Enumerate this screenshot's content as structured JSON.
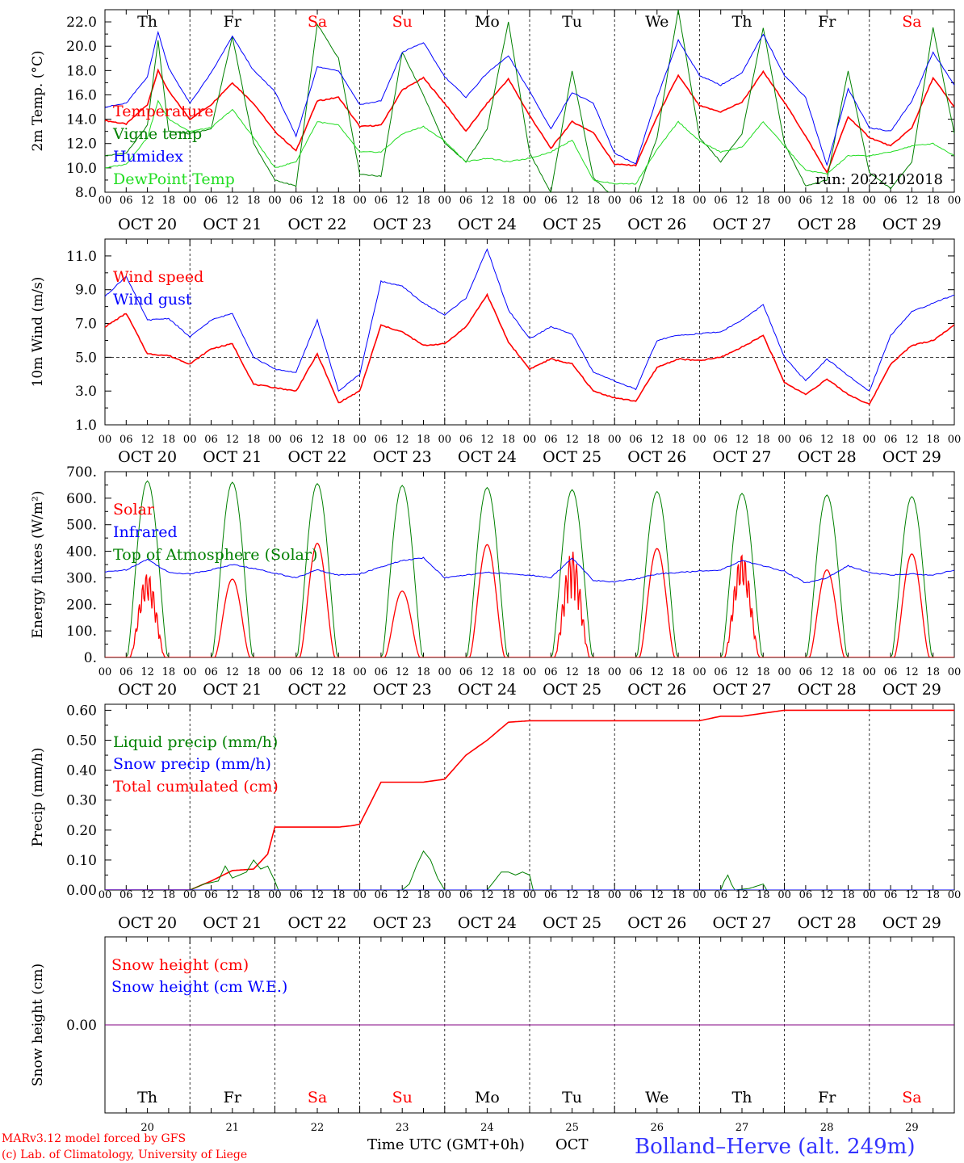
{
  "colors": {
    "red": "#ff0000",
    "green": "#008000",
    "blue": "#0000ff",
    "lightgreen": "#22dd22",
    "purple": "#800080",
    "black": "#000000",
    "title_blue": "#3333ff"
  },
  "days": {
    "names": [
      "Th",
      "Fr",
      "Sa",
      "Su",
      "Mo",
      "Tu",
      "We",
      "Th",
      "Fr",
      "Sa"
    ],
    "weekend": [
      false,
      false,
      true,
      true,
      false,
      false,
      false,
      false,
      false,
      true
    ],
    "dates": [
      "OCT 20",
      "OCT 21",
      "OCT 22",
      "OCT 23",
      "OCT 24",
      "OCT 25",
      "OCT 26",
      "OCT 27",
      "OCT 28",
      "OCT 29"
    ],
    "numbers": [
      "20",
      "21",
      "22",
      "23",
      "24",
      "25",
      "26",
      "27",
      "28",
      "29"
    ],
    "hour_ticks": [
      "00",
      "06",
      "12",
      "18"
    ],
    "end_tick": "00"
  },
  "footer": {
    "credit1": "MARv3.12 model forced by GFS",
    "credit2": "(c) Lab. of Climatology, University of Liege",
    "xlabel": "Time UTC (GMT+0h)",
    "month": "OCT",
    "station": "Bolland–Herve (alt. 249m)"
  },
  "chart_data": [
    {
      "type": "line",
      "ylabel": "2m Temp. (°C)",
      "ylim": [
        8.0,
        23.0
      ],
      "yticks": [
        "8.0",
        "10.0",
        "12.0",
        "14.0",
        "16.0",
        "18.0",
        "20.0",
        "22.0"
      ],
      "run_label": "run: 2022102018",
      "x_unit": "hours since Oct 20 00 UTC",
      "legend": [
        "Temperature",
        "Vigne temp",
        "Humidex",
        "DewPoint Temp"
      ],
      "series": [
        {
          "name": "Temperature",
          "color": "red",
          "x": [
            0,
            6,
            12,
            15,
            18,
            24,
            30,
            36,
            42,
            48,
            54,
            60,
            66,
            72,
            78,
            84,
            90,
            96,
            102,
            108,
            114,
            120,
            126,
            132,
            138,
            144,
            150,
            156,
            162,
            168,
            174,
            180,
            186,
            192,
            198,
            204,
            210,
            216,
            222,
            228,
            234,
            240
          ],
          "y": [
            13.9,
            13.6,
            15.2,
            18.0,
            16.3,
            14.0,
            15.2,
            17.0,
            15.3,
            13.0,
            11.4,
            15.5,
            15.8,
            13.4,
            13.5,
            16.4,
            17.4,
            15.3,
            13.0,
            15.3,
            17.3,
            14.3,
            11.6,
            13.8,
            12.9,
            10.3,
            10.2,
            14.2,
            17.6,
            15.1,
            14.6,
            15.4,
            17.9,
            15.4,
            12.6,
            9.6,
            14.2,
            12.5,
            11.8,
            13.3,
            17.4,
            15.0
          ]
        },
        {
          "name": "Vigne temp",
          "color": "green",
          "x": [
            0,
            6,
            12,
            15,
            18,
            24,
            30,
            36,
            42,
            48,
            54,
            60,
            66,
            72,
            78,
            84,
            90,
            96,
            102,
            108,
            114,
            120,
            126,
            132,
            138,
            144,
            150,
            156,
            162,
            168,
            174,
            180,
            186,
            192,
            198,
            204,
            210,
            216,
            222,
            228,
            234,
            240
          ],
          "y": [
            11.0,
            11.2,
            13.5,
            20.5,
            13.0,
            12.8,
            13.2,
            20.8,
            12.0,
            9.0,
            8.5,
            21.8,
            19.0,
            9.5,
            9.3,
            19.5,
            16.0,
            12.0,
            10.5,
            13.2,
            22.0,
            11.2,
            8.0,
            18.0,
            9.2,
            7.5,
            7.5,
            12.5,
            23.0,
            12.5,
            10.5,
            12.8,
            21.5,
            12.0,
            8.5,
            9.0,
            18.0,
            9.6,
            8.3,
            10.5,
            21.5,
            12.8
          ]
        },
        {
          "name": "Humidex",
          "color": "blue",
          "x": [
            0,
            6,
            12,
            15,
            18,
            24,
            30,
            36,
            42,
            48,
            54,
            60,
            66,
            72,
            78,
            84,
            90,
            96,
            102,
            108,
            114,
            120,
            126,
            132,
            138,
            144,
            150,
            156,
            162,
            168,
            174,
            180,
            186,
            192,
            198,
            204,
            210,
            216,
            222,
            228,
            234,
            240
          ],
          "y": [
            15.0,
            15.3,
            17.5,
            21.2,
            18.2,
            15.3,
            17.8,
            20.8,
            18.0,
            16.3,
            12.6,
            18.3,
            18.0,
            15.2,
            15.5,
            19.5,
            20.3,
            17.5,
            15.8,
            17.8,
            19.2,
            16.3,
            13.2,
            16.2,
            15.3,
            11.2,
            10.3,
            15.8,
            20.5,
            17.6,
            16.8,
            17.8,
            21.0,
            17.6,
            15.8,
            10.2,
            16.5,
            13.3,
            13.0,
            15.5,
            19.5,
            16.8
          ]
        },
        {
          "name": "DewPoint Temp",
          "color": "lightgreen",
          "x": [
            0,
            6,
            12,
            15,
            18,
            24,
            30,
            36,
            42,
            48,
            54,
            60,
            66,
            72,
            78,
            84,
            90,
            96,
            102,
            108,
            114,
            120,
            126,
            132,
            138,
            144,
            150,
            156,
            162,
            168,
            174,
            180,
            186,
            192,
            198,
            204,
            210,
            216,
            222,
            228,
            234,
            240
          ],
          "y": [
            10.0,
            10.3,
            12.5,
            15.5,
            14.0,
            13.0,
            13.3,
            14.8,
            12.5,
            10.0,
            10.5,
            13.8,
            13.5,
            11.3,
            11.3,
            12.8,
            13.4,
            12.2,
            10.5,
            10.8,
            10.5,
            10.8,
            11.3,
            12.3,
            9.0,
            8.7,
            8.7,
            11.5,
            13.8,
            12.2,
            11.3,
            11.7,
            13.8,
            11.8,
            9.8,
            9.5,
            11.0,
            11.0,
            11.3,
            11.8,
            12.0,
            11.0
          ]
        }
      ]
    },
    {
      "type": "line",
      "ylabel": "10m Wind (m/s)",
      "ylim": [
        1.0,
        12.0
      ],
      "yticks": [
        "1.0",
        "3.0",
        "5.0",
        "7.0",
        "9.0",
        "11.0"
      ],
      "reference_line": 5.0,
      "x_unit": "hours since Oct 20 00 UTC",
      "legend": [
        "Wind speed",
        "Wind gust"
      ],
      "series": [
        {
          "name": "Wind speed",
          "color": "red",
          "x": [
            0,
            6,
            12,
            18,
            24,
            30,
            36,
            42,
            48,
            54,
            60,
            66,
            72,
            78,
            84,
            90,
            96,
            102,
            108,
            114,
            120,
            126,
            132,
            138,
            144,
            150,
            156,
            162,
            168,
            174,
            180,
            186,
            192,
            198,
            204,
            210,
            216,
            222,
            228,
            234,
            240
          ],
          "y": [
            6.8,
            7.6,
            5.2,
            5.1,
            4.6,
            5.5,
            5.8,
            3.4,
            3.2,
            3.0,
            5.2,
            2.3,
            3.0,
            6.9,
            6.5,
            5.7,
            5.8,
            6.8,
            8.7,
            5.9,
            4.3,
            4.9,
            4.6,
            3.0,
            2.6,
            2.4,
            4.4,
            4.9,
            4.8,
            5.0,
            5.6,
            6.3,
            3.5,
            2.8,
            3.7,
            2.8,
            2.2,
            4.6,
            5.7,
            6.0,
            6.9
          ]
        },
        {
          "name": "Wind gust",
          "color": "blue",
          "x": [
            0,
            6,
            12,
            18,
            24,
            30,
            36,
            42,
            48,
            54,
            60,
            66,
            72,
            78,
            84,
            90,
            96,
            102,
            108,
            114,
            120,
            126,
            132,
            138,
            144,
            150,
            156,
            162,
            168,
            174,
            180,
            186,
            192,
            198,
            204,
            210,
            216,
            222,
            228,
            234,
            240
          ],
          "y": [
            8.6,
            9.8,
            7.2,
            7.3,
            6.2,
            7.2,
            7.6,
            5.0,
            4.3,
            4.1,
            7.2,
            3.0,
            4.0,
            9.5,
            9.2,
            8.2,
            7.5,
            8.5,
            11.4,
            7.8,
            6.1,
            6.8,
            6.4,
            4.1,
            3.6,
            3.1,
            6.0,
            6.3,
            6.4,
            6.5,
            7.2,
            8.1,
            5.0,
            3.6,
            4.9,
            3.9,
            3.0,
            6.3,
            7.7,
            8.2,
            8.7
          ]
        }
      ]
    },
    {
      "type": "line",
      "ylabel": "Energy fluxes (W/m²)",
      "ylim": [
        0,
        700
      ],
      "yticks": [
        "0.",
        "100.",
        "200.",
        "300.",
        "400.",
        "500.",
        "600.",
        "700."
      ],
      "x_unit": "hours since Oct 20 00 UTC",
      "legend": [
        "Solar",
        "Infrared",
        "Top of Atmosphere (Solar)"
      ],
      "toa_daily_peak": [
        665,
        660,
        655,
        648,
        640,
        632,
        625,
        618,
        612,
        606
      ],
      "solar_daily_peak": [
        320,
        295,
        430,
        250,
        425,
        400,
        410,
        395,
        330,
        390
      ],
      "series": [
        {
          "name": "Infrared",
          "color": "blue",
          "x": [
            0,
            6,
            12,
            18,
            24,
            30,
            36,
            42,
            48,
            54,
            60,
            66,
            72,
            78,
            84,
            90,
            96,
            102,
            108,
            114,
            120,
            126,
            132,
            138,
            144,
            150,
            156,
            162,
            168,
            174,
            180,
            186,
            192,
            198,
            204,
            210,
            216,
            222,
            228,
            234,
            240
          ],
          "y": [
            322,
            330,
            370,
            320,
            315,
            330,
            350,
            335,
            318,
            300,
            330,
            310,
            315,
            340,
            365,
            375,
            300,
            310,
            320,
            315,
            310,
            300,
            375,
            290,
            285,
            295,
            315,
            320,
            325,
            330,
            365,
            345,
            325,
            280,
            300,
            345,
            320,
            310,
            315,
            310,
            330
          ]
        }
      ]
    },
    {
      "type": "line",
      "ylabel": "Precip (mm/h)",
      "ylim": [
        0.0,
        0.62
      ],
      "yticks": [
        "0.00",
        "0.10",
        "0.20",
        "0.30",
        "0.40",
        "0.50",
        "0.60"
      ],
      "x_unit": "hours since Oct 20 00 UTC",
      "legend": [
        "Liquid precip (mm/h)",
        "Snow precip (mm/h)",
        "Total cumulated (cm)"
      ],
      "series": [
        {
          "name": "Total cumulated (cm)",
          "color": "red",
          "x": [
            0,
            24,
            30,
            36,
            42,
            46,
            48,
            66,
            70,
            72,
            78,
            84,
            90,
            96,
            102,
            108,
            114,
            120,
            156,
            162,
            168,
            174,
            180,
            192,
            240
          ],
          "y": [
            0,
            0,
            0.03,
            0.065,
            0.07,
            0.12,
            0.21,
            0.21,
            0.215,
            0.22,
            0.36,
            0.36,
            0.36,
            0.37,
            0.45,
            0.5,
            0.56,
            0.565,
            0.565,
            0.565,
            0.565,
            0.58,
            0.58,
            0.6,
            0.6
          ]
        },
        {
          "name": "Liquid precip (mm/h)",
          "color": "green",
          "x": [
            0,
            24,
            28,
            32,
            34,
            36,
            40,
            42,
            44,
            46,
            48,
            49,
            84,
            86,
            88,
            90,
            92,
            94,
            96,
            108,
            110,
            112,
            114,
            116,
            118,
            120,
            121,
            174,
            175,
            176,
            177,
            178,
            182,
            186,
            187,
            240
          ],
          "y": [
            0,
            0,
            0.02,
            0.03,
            0.08,
            0.04,
            0.06,
            0.1,
            0.07,
            0.08,
            0.03,
            0,
            0,
            0.02,
            0.08,
            0.13,
            0.1,
            0.04,
            0,
            0,
            0.03,
            0.06,
            0.06,
            0.05,
            0.06,
            0.05,
            0,
            0,
            0.03,
            0.05,
            0.02,
            0,
            0.005,
            0.02,
            0,
            0
          ]
        },
        {
          "name": "Snow precip (mm/h)",
          "color": "blue",
          "x": [
            0,
            240
          ],
          "y": [
            0,
            0
          ]
        }
      ]
    },
    {
      "type": "line",
      "ylabel": "Snow height (cm)",
      "ylim": [
        -1,
        1
      ],
      "yticks": [
        "0.00"
      ],
      "x_unit": "hours since Oct 20 00 UTC",
      "legend": [
        "Snow height (cm)",
        "Snow height (cm W.E.)"
      ],
      "series": [
        {
          "name": "Snow height (cm)",
          "color": "purple",
          "x": [
            0,
            240
          ],
          "y": [
            0,
            0
          ]
        }
      ]
    }
  ]
}
